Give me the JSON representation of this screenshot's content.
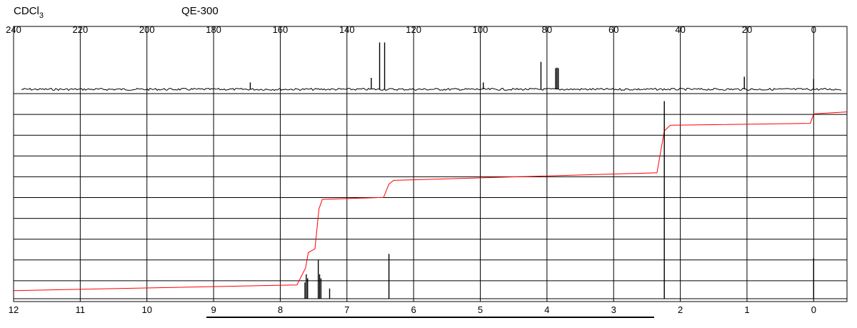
{
  "header": {
    "solvent_main": "CDCl",
    "solvent_sub": "3",
    "instrument": "QE-300"
  },
  "chart_data": [
    {
      "type": "line",
      "name": "13C spectrum",
      "xlim": [
        240,
        -10
      ],
      "x_reversed": true,
      "ticks": [
        240,
        220,
        200,
        180,
        160,
        140,
        120,
        100,
        80,
        60,
        40,
        20,
        0
      ],
      "tick_labels": [
        "240",
        "220",
        "200",
        "180",
        "160",
        "140",
        "120",
        "100",
        "80",
        "60",
        "40",
        "20",
        "0"
      ],
      "grid": true,
      "peaks": [
        {
          "ppm": 169.0,
          "intensity": 0.12
        },
        {
          "ppm": 132.7,
          "intensity": 0.2
        },
        {
          "ppm": 130.2,
          "intensity": 0.82
        },
        {
          "ppm": 128.7,
          "intensity": 0.82
        },
        {
          "ppm": 99.1,
          "intensity": 0.12
        },
        {
          "ppm": 81.8,
          "intensity": 0.48
        },
        {
          "ppm": 77.4,
          "intensity": 0.37
        },
        {
          "ppm": 77.0,
          "intensity": 0.38
        },
        {
          "ppm": 76.6,
          "intensity": 0.37
        },
        {
          "ppm": 20.8,
          "intensity": 0.22
        },
        {
          "ppm": 0.0,
          "intensity": 0.18
        }
      ]
    },
    {
      "type": "line",
      "name": "1H spectrum",
      "xlim": [
        12,
        -0.5
      ],
      "x_reversed": true,
      "ticks": [
        12,
        11,
        10,
        9,
        8,
        7,
        6,
        5,
        4,
        3,
        2,
        1,
        0
      ],
      "tick_labels": [
        "12",
        "11",
        "10",
        "9",
        "8",
        "7",
        "6",
        "5",
        "4",
        "3",
        "2",
        "1",
        "0"
      ],
      "grid": true,
      "peaks": [
        {
          "ppm": 7.63,
          "intensity": 0.08
        },
        {
          "ppm": 7.61,
          "intensity": 0.12
        },
        {
          "ppm": 7.59,
          "intensity": 0.1
        },
        {
          "ppm": 7.43,
          "intensity": 0.19
        },
        {
          "ppm": 7.41,
          "intensity": 0.12
        },
        {
          "ppm": 7.39,
          "intensity": 0.1
        },
        {
          "ppm": 7.26,
          "intensity": 0.05
        },
        {
          "ppm": 6.37,
          "intensity": 0.22
        },
        {
          "ppm": 2.24,
          "intensity": 0.97
        },
        {
          "ppm": 0.0,
          "intensity": 0.2
        }
      ],
      "integration": [
        {
          "x": 12.0,
          "y": 0.02
        },
        {
          "x": 7.75,
          "y": 0.05
        },
        {
          "x": 7.62,
          "y": 0.14
        },
        {
          "x": 7.58,
          "y": 0.22
        },
        {
          "x": 7.48,
          "y": 0.24
        },
        {
          "x": 7.42,
          "y": 0.45
        },
        {
          "x": 7.37,
          "y": 0.5
        },
        {
          "x": 6.45,
          "y": 0.51
        },
        {
          "x": 6.37,
          "y": 0.58
        },
        {
          "x": 6.3,
          "y": 0.6
        },
        {
          "x": 2.35,
          "y": 0.64
        },
        {
          "x": 2.24,
          "y": 0.86
        },
        {
          "x": 2.15,
          "y": 0.89
        },
        {
          "x": 0.05,
          "y": 0.9
        },
        {
          "x": 0.0,
          "y": 0.95
        },
        {
          "x": -0.5,
          "y": 0.96
        }
      ],
      "integration_color": "#ff0000"
    }
  ],
  "colors": {
    "spectrum": "#000000",
    "integral": "#ff0000",
    "grid": "#000000"
  }
}
